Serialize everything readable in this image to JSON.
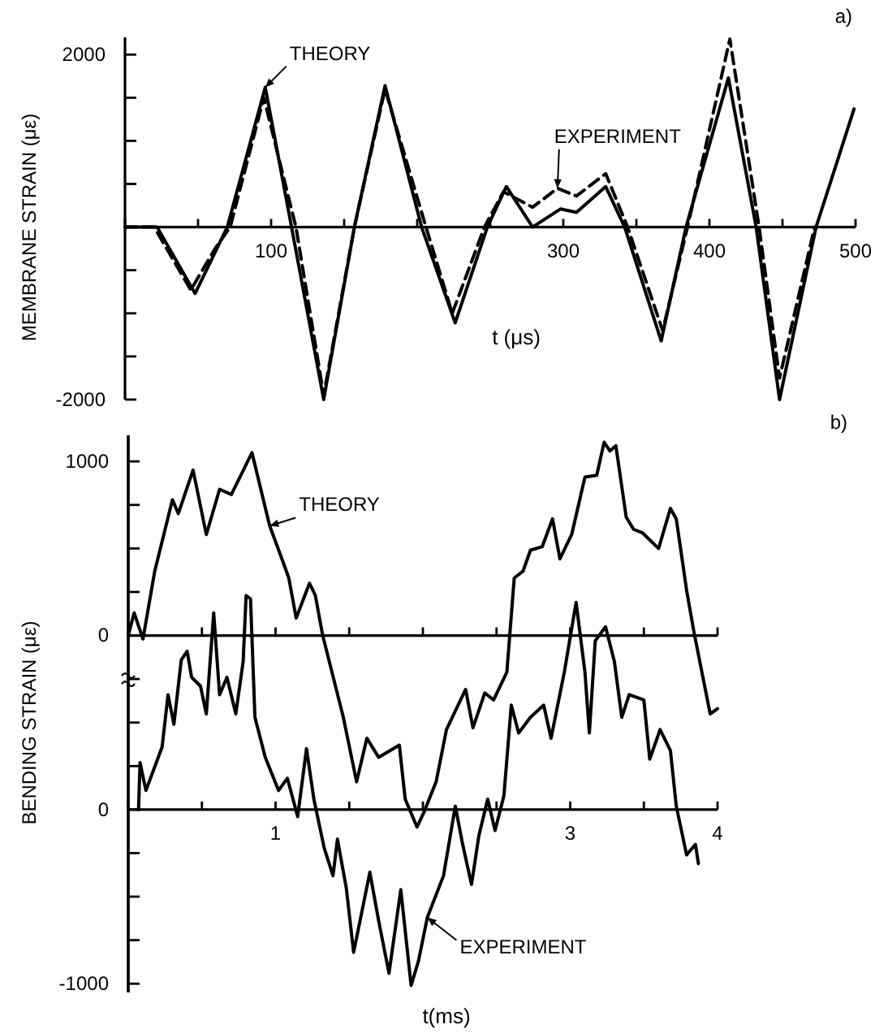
{
  "chart_data": [
    {
      "type": "line",
      "xlabel": "t (μs)",
      "ylabel": "MEMBRANE STRAIN (με)",
      "xlim": [
        0,
        500
      ],
      "xticks": [
        {
          "value": 0,
          "label": null
        },
        {
          "value": 50,
          "label": null
        },
        100,
        {
          "value": 150,
          "label": null
        },
        {
          "value": 200,
          "label": null
        },
        {
          "value": 250,
          "label": null
        },
        300,
        {
          "value": 350,
          "label": null
        },
        400,
        {
          "value": 450,
          "label": null
        },
        500
      ],
      "ylim": [
        -2000,
        2200
      ],
      "yticks": [
        -2000,
        {
          "value": -1500,
          "label": null
        },
        {
          "value": -1000,
          "label": null
        },
        {
          "value": -500,
          "label": null
        },
        {
          "value": 0,
          "label": null
        },
        {
          "value": 500,
          "label": null
        },
        {
          "value": 1000,
          "label": null
        },
        {
          "value": 1500,
          "label": null
        },
        2000
      ],
      "series": [
        {
          "color": "#000000",
          "line_style": "solid",
          "x": [
            0,
            22,
            48,
            70,
            96,
            114,
            136,
            157,
            178,
            203,
            226,
            248,
            261,
            279,
            298,
            309,
            329,
            342,
            367,
            384,
            413,
            432,
            448,
            473,
            499
          ],
          "values": [
            0,
            0,
            -770,
            0,
            1620,
            0,
            -2000,
            0,
            1640,
            0,
            -1110,
            0,
            470,
            0,
            210,
            170,
            470,
            0,
            -1320,
            0,
            1730,
            0,
            -2000,
            0,
            1370
          ]
        },
        {
          "color": "#000000",
          "line_style": "dashed",
          "x": [
            0,
            20,
            45,
            62,
            72,
            95,
            117,
            136,
            157,
            178,
            206,
            224,
            246,
            259,
            279,
            296,
            309,
            329,
            344,
            368,
            385,
            414,
            434,
            448,
            472
          ],
          "values": [
            0,
            0,
            -730,
            -240,
            0,
            1500,
            0,
            -1950,
            0,
            1600,
            0,
            -1000,
            0,
            410,
            230,
            450,
            360,
            620,
            0,
            -1200,
            0,
            2180,
            0,
            -1750,
            0
          ]
        }
      ],
      "annotations": [
        "a)",
        {
          "text": "THEORY",
          "x": 96,
          "y": 1620
        },
        {
          "text": "EXPERIMENT",
          "x": 296,
          "y": 450
        }
      ]
    },
    {
      "type": "line",
      "ylabel": "BENDING STRAIN (με)",
      "xlim": [
        0,
        4
      ],
      "tick_labels": "y",
      "xticks": [
        {
          "value": 0,
          "label": null
        },
        {
          "value": 0.5,
          "label": null
        },
        {
          "value": 1,
          "label": null
        },
        {
          "value": 1.5,
          "label": null
        },
        {
          "value": 2,
          "label": null
        },
        {
          "value": 2.5,
          "label": null
        },
        {
          "value": 3,
          "label": null
        },
        {
          "value": 3.5,
          "label": null
        },
        {
          "value": 4,
          "label": null
        }
      ],
      "ylim": [
        -2050,
        1150
      ],
      "yticks": [
        0,
        {
          "value": 250,
          "label": null
        },
        {
          "value": 500,
          "label": null
        },
        {
          "value": 750,
          "label": null
        },
        1000
      ],
      "series": [
        {
          "color": "#000000",
          "line_style": "solid",
          "x": [
            0,
            0.04,
            0.1,
            0.18,
            0.3,
            0.34,
            0.44,
            0.53,
            0.62,
            0.7,
            0.84,
            0.96,
            1.03,
            1.09,
            1.14,
            1.23,
            1.27,
            1.32,
            1.46,
            1.55,
            1.62,
            1.7,
            1.84,
            1.88,
            1.96,
            2.01,
            2.09,
            2.16,
            2.29,
            2.34,
            2.42,
            2.48,
            2.57,
            2.62,
            2.68,
            2.73,
            2.81,
            2.88,
            2.93,
            3.01,
            3.1,
            3.18,
            3.23,
            3.27,
            3.31,
            3.38,
            3.43,
            3.49,
            3.6,
            3.68,
            3.72,
            3.79,
            3.84,
            3.95,
            4.0
          ],
          "values": [
            0,
            130,
            -20,
            370,
            780,
            700,
            950,
            580,
            840,
            810,
            1050,
            630,
            470,
            330,
            100,
            300,
            230,
            0,
            -470,
            -840,
            -590,
            -700,
            -630,
            -940,
            -1100,
            -1010,
            -840,
            -540,
            -310,
            -530,
            -330,
            -370,
            -210,
            330,
            370,
            490,
            510,
            670,
            440,
            580,
            910,
            920,
            1110,
            1060,
            1090,
            680,
            610,
            590,
            500,
            730,
            670,
            260,
            20,
            -450,
            -420
          ]
        }
      ],
      "annotations": [
        "b)",
        {
          "text": "THEORY",
          "x": 0.96,
          "y": 630
        }
      ]
    },
    {
      "type": "line",
      "xlabel": "t(ms)",
      "xlim": [
        0,
        4
      ],
      "xticks": [
        {
          "value": 0,
          "label": null
        },
        {
          "value": 0.5,
          "label": null
        },
        1,
        {
          "value": 1.5,
          "label": null
        },
        {
          "value": 2,
          "label": null
        },
        {
          "value": 2.5,
          "label": null
        },
        3,
        {
          "value": 3.5,
          "label": null
        },
        4
      ],
      "ylim": [
        -1050,
        2150
      ],
      "yticks": [
        -1000,
        {
          "value": -750,
          "label": null
        },
        {
          "value": -500,
          "label": null
        },
        {
          "value": -250,
          "label": null
        },
        0,
        {
          "value": 250,
          "label": null
        },
        {
          "value": 500,
          "label": null
        },
        {
          "value": 750,
          "label": null
        }
      ],
      "series": [
        {
          "color": "#000000",
          "line_style": "solid",
          "x": [
            0.07,
            0.08,
            0.12,
            0.23,
            0.27,
            0.31,
            0.36,
            0.4,
            0.43,
            0.49,
            0.53,
            0.58,
            0.62,
            0.67,
            0.73,
            0.78,
            0.8,
            0.83,
            0.86,
            0.93,
            1.02,
            1.08,
            1.15,
            1.21,
            1.26,
            1.33,
            1.39,
            1.42,
            1.48,
            1.53,
            1.64,
            1.7,
            1.77,
            1.85,
            1.92,
            1.97,
            2.03,
            2.14,
            2.22,
            2.27,
            2.33,
            2.38,
            2.44,
            2.49,
            2.55,
            2.6,
            2.65,
            2.73,
            2.82,
            2.87,
            2.96,
            3.04,
            3.1,
            3.13,
            3.17,
            3.24,
            3.3,
            3.35,
            3.4,
            3.5,
            3.54,
            3.61,
            3.68,
            3.72,
            3.79,
            3.85,
            3.87
          ],
          "values": [
            0,
            270,
            110,
            360,
            660,
            490,
            860,
            910,
            760,
            710,
            550,
            1130,
            660,
            760,
            550,
            850,
            1230,
            1210,
            530,
            300,
            110,
            180,
            -40,
            350,
            60,
            -220,
            -380,
            -170,
            -450,
            -820,
            -360,
            -640,
            -940,
            -460,
            -1010,
            -870,
            -620,
            -380,
            20,
            -200,
            -430,
            -150,
            60,
            -120,
            80,
            600,
            440,
            530,
            600,
            410,
            790,
            1190,
            790,
            440,
            970,
            1050,
            850,
            530,
            660,
            630,
            290,
            460,
            340,
            20,
            -260,
            -200,
            -310
          ]
        }
      ],
      "annotations": [
        {
          "text": "EXPERIMENT",
          "x": 2.03,
          "y": -620
        }
      ]
    }
  ]
}
